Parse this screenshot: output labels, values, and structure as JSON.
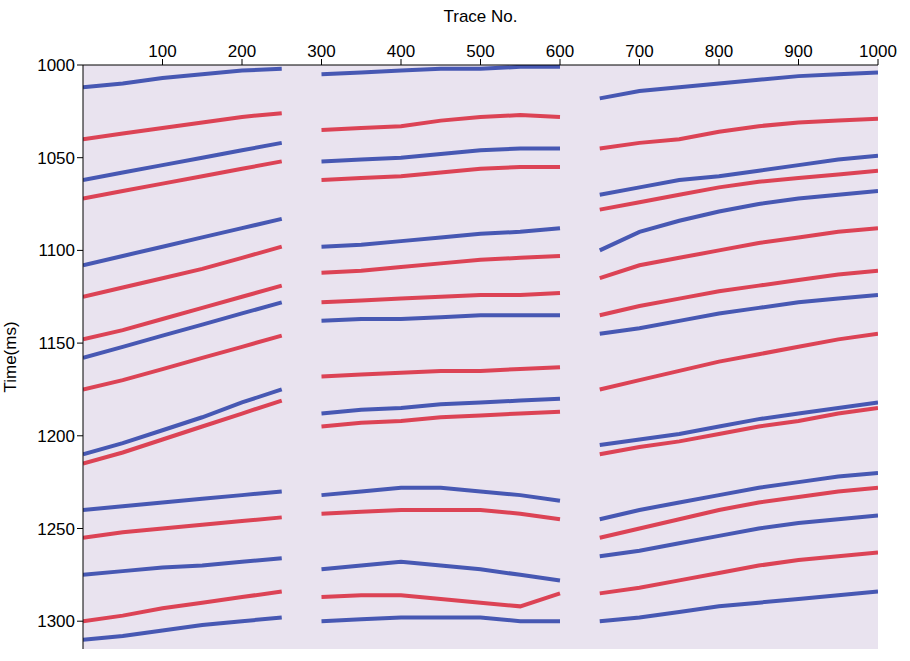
{
  "chart_data": {
    "type": "line",
    "x_label": "Trace No.",
    "y_label": "Time(ms)",
    "x": [
      0,
      50,
      100,
      150,
      200,
      250,
      275,
      300,
      350,
      400,
      450,
      500,
      550,
      600,
      625,
      650,
      700,
      750,
      800,
      850,
      900,
      950,
      1000
    ],
    "series": [
      {
        "color": "#2a3fa8",
        "values": [
          1012,
          1010,
          1007,
          1005,
          1003,
          1002,
          null,
          1005,
          1004,
          1003,
          1002,
          1002,
          1001,
          1001,
          null,
          1018,
          1014,
          1012,
          1010,
          1008,
          1006,
          1005,
          1004
        ]
      },
      {
        "color": "#d9273a",
        "values": [
          1040,
          1037,
          1034,
          1031,
          1028,
          1026,
          null,
          1035,
          1034,
          1033,
          1030,
          1028,
          1027,
          1028,
          null,
          1045,
          1042,
          1040,
          1036,
          1033,
          1031,
          1030,
          1029
        ]
      },
      {
        "color": "#2a3fa8",
        "values": [
          1062,
          1058,
          1054,
          1050,
          1046,
          1042,
          null,
          1052,
          1051,
          1050,
          1048,
          1046,
          1045,
          1045,
          null,
          1070,
          1066,
          1062,
          1060,
          1057,
          1054,
          1051,
          1049
        ]
      },
      {
        "color": "#d9273a",
        "values": [
          1072,
          1068,
          1064,
          1060,
          1056,
          1052,
          null,
          1062,
          1061,
          1060,
          1058,
          1056,
          1055,
          1055,
          null,
          1078,
          1074,
          1070,
          1066,
          1063,
          1061,
          1059,
          1057
        ]
      },
      {
        "color": "#2a3fa8",
        "values": [
          1108,
          1103,
          1098,
          1093,
          1088,
          1083,
          null,
          1098,
          1097,
          1095,
          1093,
          1091,
          1090,
          1088,
          null,
          1100,
          1090,
          1084,
          1079,
          1075,
          1072,
          1070,
          1068
        ]
      },
      {
        "color": "#d9273a",
        "values": [
          1125,
          1120,
          1115,
          1110,
          1104,
          1098,
          null,
          1112,
          1111,
          1109,
          1107,
          1105,
          1104,
          1103,
          null,
          1115,
          1108,
          1104,
          1100,
          1096,
          1093,
          1090,
          1088
        ]
      },
      {
        "color": "#d9273a",
        "values": [
          1148,
          1143,
          1137,
          1131,
          1125,
          1119,
          null,
          1128,
          1127,
          1126,
          1125,
          1124,
          1124,
          1123,
          null,
          1135,
          1130,
          1126,
          1122,
          1119,
          1116,
          1113,
          1111
        ]
      },
      {
        "color": "#2a3fa8",
        "values": [
          1158,
          1152,
          1146,
          1140,
          1134,
          1128,
          null,
          1138,
          1137,
          1137,
          1136,
          1135,
          1135,
          1135,
          null,
          1145,
          1142,
          1138,
          1134,
          1131,
          1128,
          1126,
          1124
        ]
      },
      {
        "color": "#d9273a",
        "values": [
          1175,
          1170,
          1164,
          1158,
          1152,
          1146,
          null,
          1168,
          1167,
          1166,
          1165,
          1165,
          1164,
          1163,
          null,
          1175,
          1170,
          1165,
          1160,
          1156,
          1152,
          1148,
          1145
        ]
      },
      {
        "color": "#2a3fa8",
        "values": [
          1210,
          1204,
          1197,
          1190,
          1182,
          1175,
          null,
          1188,
          1186,
          1185,
          1183,
          1182,
          1181,
          1180,
          null,
          1205,
          1202,
          1199,
          1195,
          1191,
          1188,
          1185,
          1182
        ]
      },
      {
        "color": "#d9273a",
        "values": [
          1215,
          1209,
          1202,
          1195,
          1188,
          1181,
          null,
          1195,
          1193,
          1192,
          1190,
          1189,
          1188,
          1187,
          null,
          1210,
          1206,
          1203,
          1199,
          1195,
          1192,
          1188,
          1185
        ]
      },
      {
        "color": "#2a3fa8",
        "values": [
          1240,
          1238,
          1236,
          1234,
          1232,
          1230,
          null,
          1232,
          1230,
          1228,
          1228,
          1230,
          1232,
          1235,
          null,
          1245,
          1240,
          1236,
          1232,
          1228,
          1225,
          1222,
          1220
        ]
      },
      {
        "color": "#d9273a",
        "values": [
          1255,
          1252,
          1250,
          1248,
          1246,
          1244,
          null,
          1242,
          1241,
          1240,
          1240,
          1240,
          1242,
          1245,
          null,
          1255,
          1250,
          1245,
          1240,
          1236,
          1233,
          1230,
          1228
        ]
      },
      {
        "color": "#2a3fa8",
        "values": [
          1275,
          1273,
          1271,
          1270,
          1268,
          1266,
          null,
          1272,
          1270,
          1268,
          1270,
          1272,
          1275,
          1278,
          null,
          1265,
          1262,
          1258,
          1254,
          1250,
          1247,
          1245,
          1243
        ]
      },
      {
        "color": "#d9273a",
        "values": [
          1300,
          1297,
          1293,
          1290,
          1287,
          1284,
          null,
          1287,
          1286,
          1286,
          1288,
          1290,
          1292,
          1285,
          null,
          1285,
          1282,
          1278,
          1274,
          1270,
          1267,
          1265,
          1263
        ]
      },
      {
        "color": "#2a3fa8",
        "values": [
          1310,
          1308,
          1305,
          1302,
          1300,
          1298,
          null,
          1300,
          1299,
          1298,
          1298,
          1298,
          1300,
          1300,
          null,
          1300,
          1298,
          1295,
          1292,
          1290,
          1288,
          1286,
          1284
        ]
      }
    ],
    "xlim": [
      0,
      1000
    ],
    "ylim": [
      1315,
      1000
    ],
    "xticks": [
      100,
      200,
      300,
      400,
      500,
      600,
      700,
      800,
      900,
      1000
    ],
    "yticks": [
      1000,
      1050,
      1100,
      1150,
      1200,
      1250,
      1300
    ],
    "grid": false
  }
}
